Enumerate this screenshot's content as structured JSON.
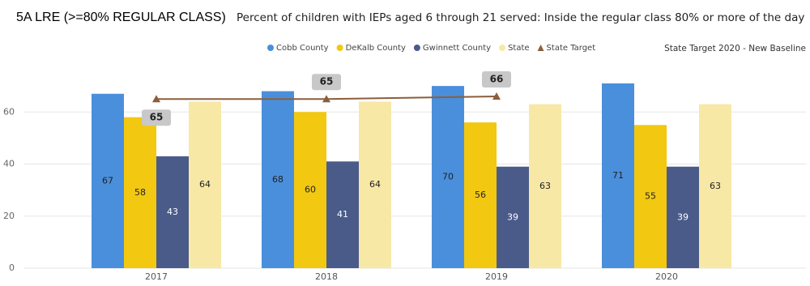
{
  "chart_data": {
    "type": "bar",
    "title": "5A LRE (>=80% REGULAR CLASS)",
    "subtitle": "Percent of children with IEPs aged 6 through 21 served: Inside the regular class 80% or more of the day",
    "note": "State Target 2020 - New Baseline",
    "categories": [
      "2017",
      "2018",
      "2019",
      "2020"
    ],
    "series": [
      {
        "name": "Cobb County",
        "color": "#4a8fdc",
        "values": [
          67,
          68,
          70,
          71
        ]
      },
      {
        "name": "DeKalb County",
        "color": "#f2c811",
        "values": [
          58,
          60,
          56,
          55
        ]
      },
      {
        "name": "Gwinnett County",
        "color": "#4a5b8a",
        "values": [
          43,
          41,
          39,
          39
        ]
      },
      {
        "name": "State",
        "color": "#f8e8a6",
        "values": [
          64,
          64,
          63,
          63
        ]
      },
      {
        "name": "State Target",
        "color": "#8b5e3c",
        "type": "line",
        "values": [
          65,
          65,
          66,
          null
        ]
      }
    ],
    "ylim": [
      0,
      80
    ],
    "yticks": [
      0,
      20,
      40,
      60
    ],
    "grid": true
  }
}
